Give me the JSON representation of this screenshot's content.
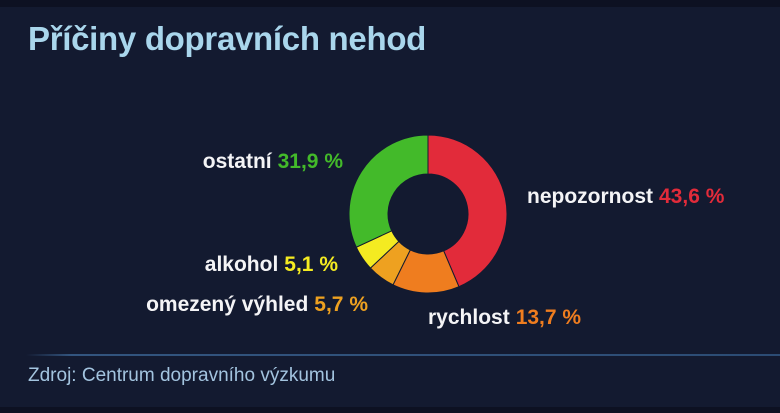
{
  "page": {
    "title": "Příčiny dopravních nehod",
    "source": "Zdroj: Centrum dopravního výzkumu"
  },
  "colors": {
    "background": "#131a30",
    "title_text": "#a9d6ec",
    "label_text": "#f4f4f6",
    "source_text": "#a3c4df",
    "divider_line": "#2c4c74"
  },
  "chart_data": {
    "type": "pie",
    "donut": true,
    "title": "Příčiny dopravních nehod",
    "unit": "%",
    "start_angle_deg": 0,
    "direction": "clockwise",
    "legend_position": "labels-around-donut",
    "segments": [
      {
        "label": "nepozornost",
        "value": 43.6,
        "value_text": "43,6 %",
        "color": "#e22b3a"
      },
      {
        "label": "rychlost",
        "value": 13.7,
        "value_text": "13,7 %",
        "color": "#ef7d1f"
      },
      {
        "label": "omezený výhled",
        "value": 5.7,
        "value_text": "5,7 %",
        "color": "#eea120"
      },
      {
        "label": "alkohol",
        "value": 5.1,
        "value_text": "5,1 %",
        "color": "#f4eb21"
      },
      {
        "label": "ostatní",
        "value": 31.9,
        "value_text": "31,9 %",
        "color": "#43ba2a"
      }
    ]
  }
}
